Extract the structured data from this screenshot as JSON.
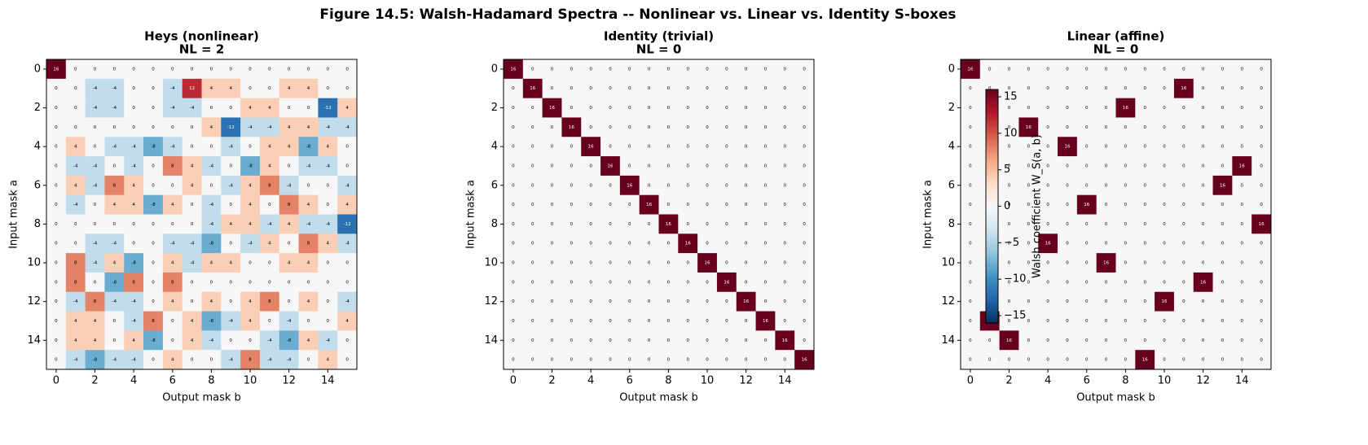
{
  "title": "Figure 14.5: Walsh-Hadamard Spectra -- Nonlinear vs. Linear vs. Identity S-boxes",
  "chart_data": [
    {
      "type": "heatmap",
      "title": "Heys (nonlinear)",
      "subtitle": "NL = 2",
      "x_label": "Output mask b",
      "y_label": "Input mask a",
      "xlim": [
        -0.5,
        15.5
      ],
      "ylim": [
        15.5,
        -0.5
      ],
      "xticks": [
        0,
        2,
        4,
        6,
        8,
        10,
        12,
        14
      ],
      "yticks": [
        0,
        2,
        4,
        6,
        8,
        10,
        12,
        14
      ],
      "values": [
        [
          16,
          0,
          0,
          0,
          0,
          0,
          0,
          0,
          0,
          0,
          0,
          0,
          0,
          0,
          0,
          0
        ],
        [
          0,
          0,
          -4,
          -4,
          0,
          0,
          -4,
          12,
          4,
          4,
          0,
          0,
          4,
          4,
          0,
          0
        ],
        [
          0,
          0,
          -4,
          -4,
          0,
          0,
          -4,
          -4,
          0,
          0,
          4,
          4,
          0,
          0,
          -12,
          4
        ],
        [
          0,
          0,
          0,
          0,
          0,
          0,
          0,
          0,
          4,
          -12,
          -4,
          -4,
          4,
          4,
          -4,
          -4
        ],
        [
          0,
          4,
          0,
          -4,
          -4,
          -8,
          -4,
          0,
          0,
          -4,
          0,
          4,
          4,
          -8,
          4,
          0
        ],
        [
          0,
          -4,
          -4,
          0,
          -4,
          0,
          8,
          4,
          -4,
          0,
          -8,
          4,
          0,
          -4,
          -4,
          0
        ],
        [
          0,
          4,
          -4,
          8,
          4,
          0,
          0,
          4,
          0,
          -4,
          4,
          8,
          -4,
          0,
          0,
          -4
        ],
        [
          0,
          -4,
          0,
          4,
          4,
          -8,
          4,
          0,
          -4,
          0,
          4,
          0,
          8,
          4,
          0,
          4
        ],
        [
          0,
          0,
          0,
          0,
          0,
          0,
          0,
          0,
          -4,
          4,
          4,
          -4,
          4,
          -4,
          -4,
          -12
        ],
        [
          0,
          0,
          -4,
          -4,
          0,
          0,
          -4,
          -4,
          -8,
          0,
          -4,
          4,
          0,
          8,
          4,
          -4
        ],
        [
          0,
          8,
          -4,
          4,
          -8,
          0,
          4,
          -4,
          4,
          4,
          0,
          0,
          4,
          4,
          0,
          0
        ],
        [
          0,
          8,
          0,
          -8,
          8,
          0,
          8,
          0,
          0,
          0,
          0,
          0,
          0,
          0,
          0,
          0
        ],
        [
          0,
          -4,
          8,
          -4,
          -4,
          0,
          4,
          0,
          4,
          0,
          4,
          8,
          0,
          4,
          0,
          -4
        ],
        [
          0,
          4,
          4,
          0,
          -4,
          8,
          0,
          4,
          -8,
          -4,
          4,
          0,
          -4,
          0,
          0,
          4
        ],
        [
          0,
          4,
          4,
          0,
          4,
          -8,
          0,
          4,
          -4,
          0,
          0,
          -4,
          -8,
          4,
          -4,
          0
        ],
        [
          0,
          -4,
          -8,
          -4,
          -4,
          0,
          4,
          0,
          0,
          -4,
          8,
          -4,
          -4,
          0,
          4,
          0
        ]
      ]
    },
    {
      "type": "heatmap",
      "title": "Identity (trivial)",
      "subtitle": "NL = 0",
      "x_label": "Output mask b",
      "y_label": "Input mask a",
      "xlim": [
        -0.5,
        15.5
      ],
      "ylim": [
        15.5,
        -0.5
      ],
      "xticks": [
        0,
        2,
        4,
        6,
        8,
        10,
        12,
        14
      ],
      "yticks": [
        0,
        2,
        4,
        6,
        8,
        10,
        12,
        14
      ],
      "values": [
        [
          16,
          0,
          0,
          0,
          0,
          0,
          0,
          0,
          0,
          0,
          0,
          0,
          0,
          0,
          0,
          0
        ],
        [
          0,
          16,
          0,
          0,
          0,
          0,
          0,
          0,
          0,
          0,
          0,
          0,
          0,
          0,
          0,
          0
        ],
        [
          0,
          0,
          16,
          0,
          0,
          0,
          0,
          0,
          0,
          0,
          0,
          0,
          0,
          0,
          0,
          0
        ],
        [
          0,
          0,
          0,
          16,
          0,
          0,
          0,
          0,
          0,
          0,
          0,
          0,
          0,
          0,
          0,
          0
        ],
        [
          0,
          0,
          0,
          0,
          16,
          0,
          0,
          0,
          0,
          0,
          0,
          0,
          0,
          0,
          0,
          0
        ],
        [
          0,
          0,
          0,
          0,
          0,
          16,
          0,
          0,
          0,
          0,
          0,
          0,
          0,
          0,
          0,
          0
        ],
        [
          0,
          0,
          0,
          0,
          0,
          0,
          16,
          0,
          0,
          0,
          0,
          0,
          0,
          0,
          0,
          0
        ],
        [
          0,
          0,
          0,
          0,
          0,
          0,
          0,
          16,
          0,
          0,
          0,
          0,
          0,
          0,
          0,
          0
        ],
        [
          0,
          0,
          0,
          0,
          0,
          0,
          0,
          0,
          16,
          0,
          0,
          0,
          0,
          0,
          0,
          0
        ],
        [
          0,
          0,
          0,
          0,
          0,
          0,
          0,
          0,
          0,
          16,
          0,
          0,
          0,
          0,
          0,
          0
        ],
        [
          0,
          0,
          0,
          0,
          0,
          0,
          0,
          0,
          0,
          0,
          16,
          0,
          0,
          0,
          0,
          0
        ],
        [
          0,
          0,
          0,
          0,
          0,
          0,
          0,
          0,
          0,
          0,
          0,
          16,
          0,
          0,
          0,
          0
        ],
        [
          0,
          0,
          0,
          0,
          0,
          0,
          0,
          0,
          0,
          0,
          0,
          0,
          16,
          0,
          0,
          0
        ],
        [
          0,
          0,
          0,
          0,
          0,
          0,
          0,
          0,
          0,
          0,
          0,
          0,
          0,
          16,
          0,
          0
        ],
        [
          0,
          0,
          0,
          0,
          0,
          0,
          0,
          0,
          0,
          0,
          0,
          0,
          0,
          0,
          16,
          0
        ],
        [
          0,
          0,
          0,
          0,
          0,
          0,
          0,
          0,
          0,
          0,
          0,
          0,
          0,
          0,
          0,
          16
        ]
      ]
    },
    {
      "type": "heatmap",
      "title": "Linear (affine)",
      "subtitle": "NL = 0",
      "x_label": "Output mask b",
      "y_label": "Input mask a",
      "xlim": [
        -0.5,
        15.5
      ],
      "ylim": [
        15.5,
        -0.5
      ],
      "xticks": [
        0,
        2,
        4,
        6,
        8,
        10,
        12,
        14
      ],
      "yticks": [
        0,
        2,
        4,
        6,
        8,
        10,
        12,
        14
      ],
      "values": [
        [
          16,
          0,
          0,
          0,
          0,
          0,
          0,
          0,
          0,
          0,
          0,
          0,
          0,
          0,
          0,
          0
        ],
        [
          0,
          0,
          0,
          0,
          0,
          0,
          0,
          0,
          0,
          0,
          0,
          16,
          0,
          0,
          0,
          0
        ],
        [
          0,
          0,
          0,
          0,
          0,
          0,
          0,
          0,
          16,
          0,
          0,
          0,
          0,
          0,
          0,
          0
        ],
        [
          0,
          0,
          0,
          16,
          0,
          0,
          0,
          0,
          0,
          0,
          0,
          0,
          0,
          0,
          0,
          0
        ],
        [
          0,
          0,
          0,
          0,
          0,
          16,
          0,
          0,
          0,
          0,
          0,
          0,
          0,
          0,
          0,
          0
        ],
        [
          0,
          0,
          0,
          0,
          0,
          0,
          0,
          0,
          0,
          0,
          0,
          0,
          0,
          0,
          16,
          0
        ],
        [
          0,
          0,
          0,
          0,
          0,
          0,
          0,
          0,
          0,
          0,
          0,
          0,
          0,
          16,
          0,
          0
        ],
        [
          0,
          0,
          0,
          0,
          0,
          0,
          16,
          0,
          0,
          0,
          0,
          0,
          0,
          0,
          0,
          0
        ],
        [
          0,
          0,
          0,
          0,
          0,
          0,
          0,
          0,
          0,
          0,
          0,
          0,
          0,
          0,
          0,
          16
        ],
        [
          0,
          0,
          0,
          0,
          16,
          0,
          0,
          0,
          0,
          0,
          0,
          0,
          0,
          0,
          0,
          0
        ],
        [
          0,
          0,
          0,
          0,
          0,
          0,
          0,
          16,
          0,
          0,
          0,
          0,
          0,
          0,
          0,
          0
        ],
        [
          0,
          0,
          0,
          0,
          0,
          0,
          0,
          0,
          0,
          0,
          0,
          0,
          16,
          0,
          0,
          0
        ],
        [
          0,
          0,
          0,
          0,
          0,
          0,
          0,
          0,
          0,
          0,
          16,
          0,
          0,
          0,
          0,
          0
        ],
        [
          0,
          16,
          0,
          0,
          0,
          0,
          0,
          0,
          0,
          0,
          0,
          0,
          0,
          0,
          0,
          0
        ],
        [
          0,
          0,
          16,
          0,
          0,
          0,
          0,
          0,
          0,
          0,
          0,
          0,
          0,
          0,
          0,
          0
        ],
        [
          0,
          0,
          0,
          0,
          0,
          0,
          0,
          0,
          0,
          16,
          0,
          0,
          0,
          0,
          0,
          0
        ]
      ],
      "colorbar": {
        "label": "Walsh coefficient W_S(a, b)",
        "lim": [
          -16,
          16
        ],
        "ticks": [
          {
            "value": -15,
            "label": "−15"
          },
          {
            "value": -10,
            "label": "−10"
          },
          {
            "value": -5,
            "label": "−5"
          },
          0,
          5,
          10,
          15
        ],
        "cmap": [
          "#053061",
          "#2166ac",
          "#4393c3",
          "#92c5de",
          "#d1e5f0",
          "#f7f7f7",
          "#fddbc7",
          "#f4a582",
          "#d6604d",
          "#b2182b",
          "#67001f"
        ]
      }
    }
  ]
}
